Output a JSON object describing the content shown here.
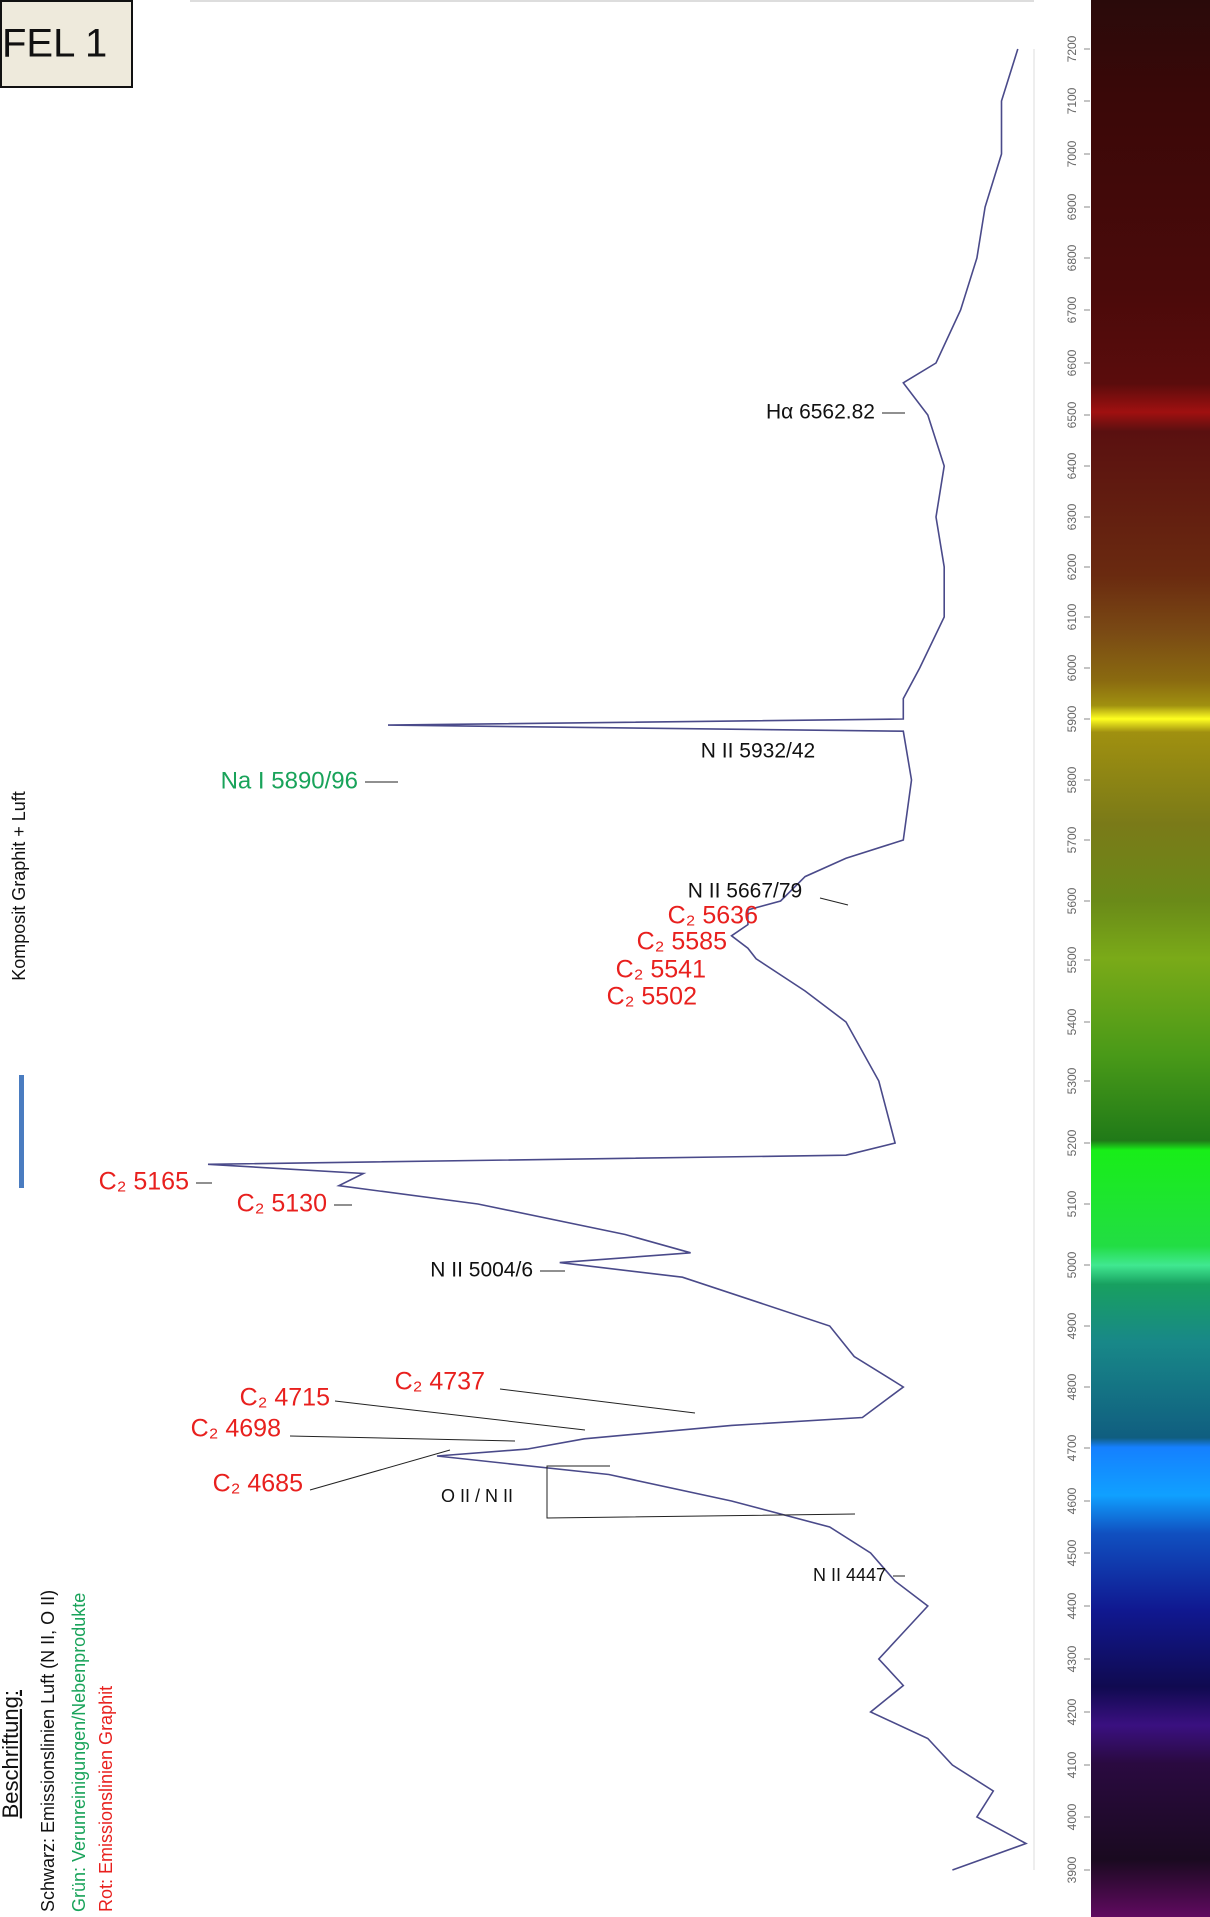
{
  "chart_data": {
    "type": "line",
    "title": "FEL 1",
    "subtitle": "Komposit Graphit + Luft",
    "legend_notes": {
      "heading": "Beschriftung:",
      "lines": [
        {
          "text": "Schwarz: Emissionslinien Luft (N II, O II)",
          "color": "#111111"
        },
        {
          "text": "Grün: Verunreinigungen/Nebenprodukte",
          "color": "#19a35a"
        },
        {
          "text": "Rot: Emissionslinien Graphit",
          "color": "#e8201e"
        }
      ]
    },
    "annotations": [
      {
        "text": "Hα 6562.82",
        "color": "#111111"
      },
      {
        "text": "N II 5932/42",
        "color": "#111111"
      },
      {
        "text": "Na I 5890/96",
        "color": "#19a35a"
      },
      {
        "text": "N II 5667/79",
        "color": "#111111"
      },
      {
        "text": "C₂ 5636",
        "color": "#e8201e"
      },
      {
        "text": "C₂ 5585",
        "color": "#e8201e"
      },
      {
        "text": "C₂ 5541",
        "color": "#e8201e"
      },
      {
        "text": "C₂ 5502",
        "color": "#e8201e"
      },
      {
        "text": "C₂ 5165",
        "color": "#e8201e"
      },
      {
        "text": "C₂ 5130",
        "color": "#e8201e"
      },
      {
        "text": "N II 5004/6",
        "color": "#111111"
      },
      {
        "text": "C₂ 4737",
        "color": "#e8201e"
      },
      {
        "text": "C₂ 4715",
        "color": "#e8201e"
      },
      {
        "text": "C₂ 4698",
        "color": "#e8201e"
      },
      {
        "text": "C₂ 4685",
        "color": "#e8201e"
      },
      {
        "text": "O II / N II",
        "color": "#111111"
      },
      {
        "text": "N II 4447",
        "color": "#111111"
      }
    ],
    "x": [
      3900,
      3950,
      4000,
      4050,
      4100,
      4150,
      4200,
      4250,
      4300,
      4350,
      4400,
      4447,
      4500,
      4550,
      4600,
      4650,
      4685,
      4698,
      4715,
      4737,
      4750,
      4800,
      4850,
      4900,
      4980,
      5004,
      5020,
      5050,
      5100,
      5130,
      5150,
      5165,
      5180,
      5200,
      5300,
      5400,
      5450,
      5502,
      5520,
      5541,
      5560,
      5585,
      5600,
      5640,
      5670,
      5700,
      5800,
      5880,
      5890,
      5900,
      5940,
      6000,
      6100,
      6200,
      6300,
      6400,
      6500,
      6562,
      6600,
      6700,
      6800,
      6900,
      7000,
      7100,
      7200
    ],
    "values": [
      9,
      0,
      6,
      4,
      9,
      12,
      19,
      15,
      18,
      15,
      12,
      16,
      19,
      24,
      36,
      51,
      72,
      61,
      54,
      36,
      20,
      15,
      21,
      24,
      42,
      57,
      41,
      49,
      67,
      84,
      81,
      100,
      22,
      16,
      18,
      22,
      27,
      33,
      34,
      36,
      34,
      34,
      30,
      27,
      22,
      15,
      14,
      15,
      78,
      15,
      15,
      13,
      10,
      10,
      11,
      10,
      12,
      15,
      11,
      8,
      6,
      5,
      3,
      3,
      1
    ],
    "color": "#4a4a8a",
    "xlim": [
      3900,
      7200
    ],
    "xticks": [
      3900,
      4000,
      4100,
      4200,
      4300,
      4400,
      4500,
      4600,
      4700,
      4800,
      4900,
      5000,
      5100,
      5200,
      5300,
      5400,
      5500,
      5600,
      5700,
      5800,
      5900,
      6000,
      6100,
      6200,
      6300,
      6400,
      6500,
      6600,
      6700,
      6800,
      6900,
      7000,
      7100,
      7200
    ],
    "ylim": [
      0,
      100
    ]
  }
}
